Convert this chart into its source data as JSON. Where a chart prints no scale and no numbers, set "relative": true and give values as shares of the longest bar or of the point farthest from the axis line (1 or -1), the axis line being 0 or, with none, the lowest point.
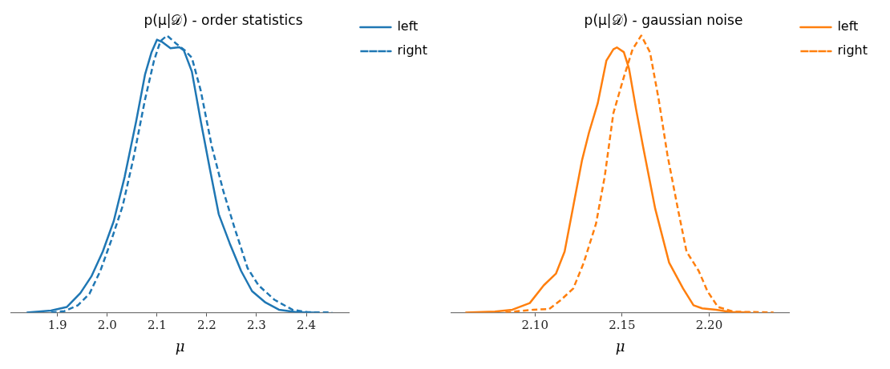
{
  "chart_data": [
    {
      "type": "line",
      "title": "p(μ|𝒟) - order statistics",
      "xlabel": "μ",
      "relative": true,
      "xlim": [
        1.807,
        2.486
      ],
      "xticks": [
        {
          "value": 1.9,
          "label": "1.9"
        },
        {
          "value": 2.0,
          "label": "2.0"
        },
        {
          "value": 2.1,
          "label": "2.1"
        },
        {
          "value": 2.2,
          "label": "2.2"
        },
        {
          "value": 2.3,
          "label": "2.3"
        },
        {
          "value": 2.4,
          "label": "2.4"
        }
      ],
      "grid": false,
      "legend": "top right",
      "marker": "none",
      "series": [
        {
          "name": "left",
          "color": "#1f77b4",
          "line_style": "solid",
          "x": [
            1.838,
            1.887,
            1.919,
            1.946,
            1.968,
            1.991,
            2.013,
            2.035,
            2.058,
            2.076,
            2.089,
            2.1,
            2.111,
            2.127,
            2.145,
            2.154,
            2.17,
            2.188,
            2.206,
            2.224,
            2.246,
            2.269,
            2.291,
            2.318,
            2.345,
            2.381,
            2.417
          ],
          "values": [
            0,
            0.007,
            0.02,
            0.07,
            0.13,
            0.22,
            0.33,
            0.49,
            0.69,
            0.86,
            0.94,
            0.985,
            0.976,
            0.954,
            0.958,
            0.946,
            0.87,
            0.69,
            0.52,
            0.355,
            0.25,
            0.15,
            0.077,
            0.036,
            0.01,
            0.001,
            0
          ]
        },
        {
          "name": "right",
          "color": "#1f77b4",
          "line_style": "dashed",
          "x": [
            1.887,
            1.914,
            1.941,
            1.964,
            1.986,
            2.008,
            2.031,
            2.053,
            2.076,
            2.094,
            2.107,
            2.12,
            2.139,
            2.156,
            2.17,
            2.188,
            2.21,
            2.233,
            2.255,
            2.282,
            2.304,
            2.336,
            2.372,
            2.403,
            2.452
          ],
          "values": [
            0,
            0.005,
            0.026,
            0.067,
            0.15,
            0.26,
            0.385,
            0.56,
            0.77,
            0.91,
            0.98,
            1,
            0.97,
            0.946,
            0.92,
            0.8,
            0.6,
            0.44,
            0.31,
            0.16,
            0.098,
            0.046,
            0.01,
            0.001,
            0
          ]
        }
      ]
    },
    {
      "type": "line",
      "title": "p(μ|𝒟) - gaussian noise",
      "xlabel": "μ",
      "relative": true,
      "xlim": [
        2.052,
        2.246
      ],
      "xticks": [
        {
          "value": 2.1,
          "label": "2.10"
        },
        {
          "value": 2.15,
          "label": "2.15"
        },
        {
          "value": 2.2,
          "label": "2.20"
        }
      ],
      "grid": false,
      "legend": "top right",
      "marker": "none",
      "series": [
        {
          "name": "left",
          "color": "#ff7f0e",
          "line_style": "solid",
          "x": [
            2.06,
            2.077,
            2.087,
            2.097,
            2.105,
            2.112,
            2.117,
            2.122,
            2.127,
            2.131,
            2.136,
            2.141,
            2.145,
            2.147,
            2.151,
            2.154,
            2.158,
            2.162,
            2.169,
            2.177,
            2.185,
            2.191,
            2.196,
            2.204,
            2.212,
            2.224
          ],
          "values": [
            0,
            0.003,
            0.01,
            0.034,
            0.098,
            0.14,
            0.22,
            0.385,
            0.55,
            0.65,
            0.755,
            0.91,
            0.95,
            0.957,
            0.94,
            0.88,
            0.735,
            0.6,
            0.375,
            0.18,
            0.087,
            0.026,
            0.015,
            0.01,
            0.002,
            0
          ]
        },
        {
          "name": "right",
          "color": "#ff7f0e",
          "line_style": "dashed",
          "x": [
            2.083,
            2.099,
            2.108,
            2.115,
            2.122,
            2.128,
            2.135,
            2.14,
            2.145,
            2.151,
            2.156,
            2.161,
            2.166,
            2.171,
            2.176,
            2.182,
            2.187,
            2.194,
            2.199,
            2.205,
            2.214,
            2.237
          ],
          "values": [
            0,
            0.01,
            0.012,
            0.046,
            0.087,
            0.18,
            0.32,
            0.49,
            0.72,
            0.85,
            0.95,
            1,
            0.94,
            0.77,
            0.57,
            0.375,
            0.22,
            0.15,
            0.077,
            0.02,
            0.003,
            0
          ]
        }
      ]
    }
  ]
}
